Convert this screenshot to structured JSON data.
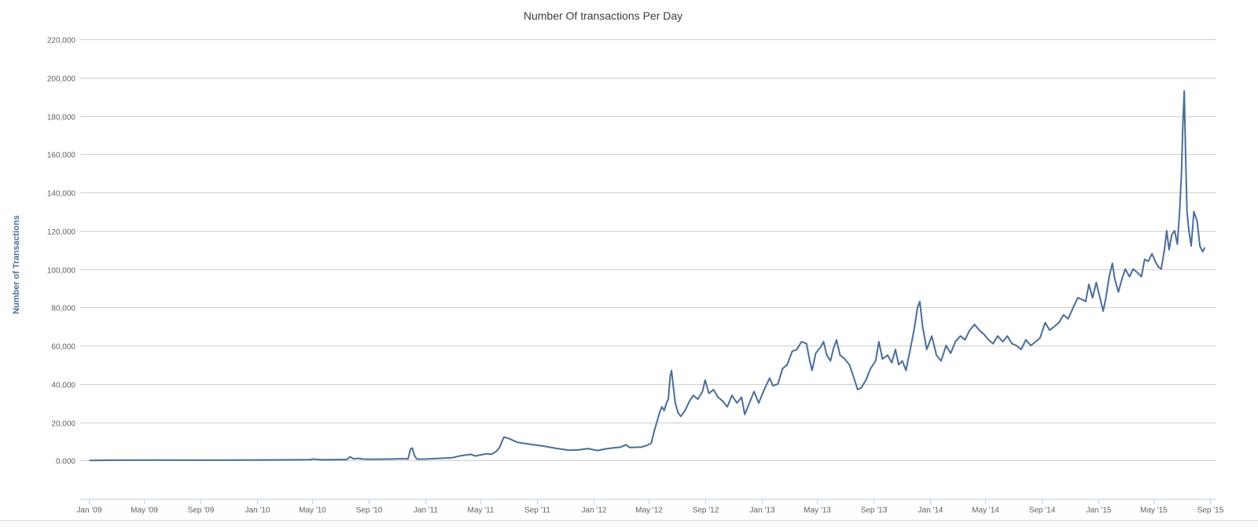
{
  "chart_data": {
    "type": "line",
    "title": "Number Of transactions Per Day",
    "xlabel": "",
    "ylabel": "Number of Transactions",
    "x_tick_labels": [
      "Jan '09",
      "May '09",
      "Sep '09",
      "Jan '10",
      "May '10",
      "Sep '10",
      "Jan '11",
      "May '11",
      "Sep '11",
      "Jan '12",
      "May '12",
      "Sep '12",
      "Jan '13",
      "May '13",
      "Sep '13",
      "Jan '14",
      "May '14",
      "Sep '14",
      "Jan '15",
      "May '15",
      "Sep '15"
    ],
    "x_tick_dates": [
      "2009-01-01",
      "2009-05-01",
      "2009-09-01",
      "2010-01-01",
      "2010-05-01",
      "2010-09-01",
      "2011-01-01",
      "2011-05-01",
      "2011-09-01",
      "2012-01-01",
      "2012-05-01",
      "2012-09-01",
      "2013-01-01",
      "2013-05-01",
      "2013-09-01",
      "2014-01-01",
      "2014-05-01",
      "2014-09-01",
      "2015-01-01",
      "2015-05-01",
      "2015-09-01"
    ],
    "y_tick_labels": [
      "0.000",
      "20,000",
      "40,000",
      "60,000",
      "80,000",
      "100,000",
      "120,000",
      "140,000",
      "160,000",
      "180,000",
      "200,000",
      "220,000"
    ],
    "y_tick_values": [
      0,
      20000,
      40000,
      60000,
      80000,
      100000,
      120000,
      140000,
      160000,
      180000,
      200000,
      220000
    ],
    "ylim": [
      -20000,
      220000
    ],
    "xlim": [
      "2009-01-01",
      "2015-09-01"
    ],
    "grid": true,
    "legend": "none",
    "series": [
      {
        "color": "#4a6d99",
        "points": [
          [
            "2009-01-03",
            0
          ],
          [
            "2009-03-01",
            150
          ],
          [
            "2009-06-01",
            200
          ],
          [
            "2009-09-01",
            150
          ],
          [
            "2009-12-01",
            200
          ],
          [
            "2010-03-01",
            300
          ],
          [
            "2010-04-25",
            400
          ],
          [
            "2010-05-05",
            700
          ],
          [
            "2010-05-20",
            350
          ],
          [
            "2010-06-20",
            400
          ],
          [
            "2010-07-15",
            500
          ],
          [
            "2010-07-22",
            1900
          ],
          [
            "2010-07-30",
            800
          ],
          [
            "2010-08-10",
            1100
          ],
          [
            "2010-08-20",
            700
          ],
          [
            "2010-09-15",
            600
          ],
          [
            "2010-10-15",
            700
          ],
          [
            "2010-11-10",
            900
          ],
          [
            "2010-11-25",
            800
          ],
          [
            "2010-11-30",
            5800
          ],
          [
            "2010-12-04",
            6500
          ],
          [
            "2010-12-09",
            2500
          ],
          [
            "2010-12-14",
            700
          ],
          [
            "2011-01-01",
            700
          ],
          [
            "2011-02-01",
            1100
          ],
          [
            "2011-03-01",
            1400
          ],
          [
            "2011-03-20",
            2500
          ],
          [
            "2011-04-10",
            3200
          ],
          [
            "2011-04-20",
            2300
          ],
          [
            "2011-05-15",
            3500
          ],
          [
            "2011-05-25",
            3200
          ],
          [
            "2011-06-05",
            4800
          ],
          [
            "2011-06-12",
            7000
          ],
          [
            "2011-06-17",
            10000
          ],
          [
            "2011-06-21",
            12200
          ],
          [
            "2011-07-01",
            11500
          ],
          [
            "2011-07-20",
            9500
          ],
          [
            "2011-08-15",
            8500
          ],
          [
            "2011-09-15",
            7500
          ],
          [
            "2011-10-15",
            6200
          ],
          [
            "2011-11-10",
            5300
          ],
          [
            "2011-12-01",
            5500
          ],
          [
            "2011-12-20",
            6200
          ],
          [
            "2012-01-10",
            5200
          ],
          [
            "2012-02-01",
            6200
          ],
          [
            "2012-03-01",
            7000
          ],
          [
            "2012-03-12",
            8200
          ],
          [
            "2012-03-20",
            6800
          ],
          [
            "2012-04-15",
            7000
          ],
          [
            "2012-04-28",
            8000
          ],
          [
            "2012-05-06",
            9000
          ],
          [
            "2012-05-12",
            15000
          ],
          [
            "2012-05-18",
            20000
          ],
          [
            "2012-05-24",
            25000
          ],
          [
            "2012-05-29",
            28000
          ],
          [
            "2012-06-03",
            26000
          ],
          [
            "2012-06-08",
            30000
          ],
          [
            "2012-06-12",
            32000
          ],
          [
            "2012-06-16",
            44000
          ],
          [
            "2012-06-19",
            47000
          ],
          [
            "2012-06-23",
            38000
          ],
          [
            "2012-06-27",
            30000
          ],
          [
            "2012-07-03",
            25000
          ],
          [
            "2012-07-09",
            23000
          ],
          [
            "2012-07-18",
            26000
          ],
          [
            "2012-07-28",
            31000
          ],
          [
            "2012-08-05",
            34000
          ],
          [
            "2012-08-15",
            32000
          ],
          [
            "2012-08-25",
            36000
          ],
          [
            "2012-08-31",
            42000
          ],
          [
            "2012-09-08",
            35000
          ],
          [
            "2012-09-18",
            37000
          ],
          [
            "2012-09-28",
            33000
          ],
          [
            "2012-10-08",
            31000
          ],
          [
            "2012-10-18",
            28000
          ],
          [
            "2012-10-28",
            34000
          ],
          [
            "2012-11-08",
            30000
          ],
          [
            "2012-11-18",
            33000
          ],
          [
            "2012-11-25",
            24000
          ],
          [
            "2012-12-05",
            30000
          ],
          [
            "2012-12-15",
            36000
          ],
          [
            "2012-12-25",
            30000
          ],
          [
            "2013-01-08",
            38000
          ],
          [
            "2013-01-18",
            43000
          ],
          [
            "2013-01-25",
            39000
          ],
          [
            "2013-02-05",
            40000
          ],
          [
            "2013-02-15",
            48000
          ],
          [
            "2013-02-25",
            50000
          ],
          [
            "2013-03-08",
            57000
          ],
          [
            "2013-03-18",
            58000
          ],
          [
            "2013-03-28",
            62000
          ],
          [
            "2013-04-08",
            61000
          ],
          [
            "2013-04-15",
            52000
          ],
          [
            "2013-04-20",
            47000
          ],
          [
            "2013-04-28",
            56000
          ],
          [
            "2013-05-08",
            59000
          ],
          [
            "2013-05-15",
            62000
          ],
          [
            "2013-05-22",
            55000
          ],
          [
            "2013-05-30",
            52000
          ],
          [
            "2013-06-05",
            58000
          ],
          [
            "2013-06-12",
            63000
          ],
          [
            "2013-06-20",
            55000
          ],
          [
            "2013-06-30",
            53000
          ],
          [
            "2013-07-10",
            50000
          ],
          [
            "2013-07-20",
            43000
          ],
          [
            "2013-07-28",
            37000
          ],
          [
            "2013-08-05",
            38000
          ],
          [
            "2013-08-15",
            42000
          ],
          [
            "2013-08-25",
            48000
          ],
          [
            "2013-09-05",
            52000
          ],
          [
            "2013-09-12",
            62000
          ],
          [
            "2013-09-20",
            53000
          ],
          [
            "2013-10-01",
            55000
          ],
          [
            "2013-10-10",
            51000
          ],
          [
            "2013-10-18",
            58000
          ],
          [
            "2013-10-25",
            50000
          ],
          [
            "2013-11-02",
            52000
          ],
          [
            "2013-11-10",
            47000
          ],
          [
            "2013-11-20",
            59000
          ],
          [
            "2013-11-28",
            69000
          ],
          [
            "2013-12-05",
            80000
          ],
          [
            "2013-12-10",
            83000
          ],
          [
            "2013-12-16",
            70000
          ],
          [
            "2013-12-25",
            58000
          ],
          [
            "2014-01-05",
            65000
          ],
          [
            "2014-01-15",
            55000
          ],
          [
            "2014-01-25",
            52000
          ],
          [
            "2014-02-05",
            60000
          ],
          [
            "2014-02-15",
            56000
          ],
          [
            "2014-02-25",
            62000
          ],
          [
            "2014-03-08",
            65000
          ],
          [
            "2014-03-18",
            63000
          ],
          [
            "2014-03-28",
            68000
          ],
          [
            "2014-04-08",
            71000
          ],
          [
            "2014-04-18",
            68000
          ],
          [
            "2014-04-28",
            66000
          ],
          [
            "2014-05-08",
            63000
          ],
          [
            "2014-05-18",
            61000
          ],
          [
            "2014-05-28",
            65000
          ],
          [
            "2014-06-08",
            62000
          ],
          [
            "2014-06-18",
            65000
          ],
          [
            "2014-06-28",
            61000
          ],
          [
            "2014-07-08",
            60000
          ],
          [
            "2014-07-18",
            58000
          ],
          [
            "2014-07-28",
            63000
          ],
          [
            "2014-08-08",
            60000
          ],
          [
            "2014-08-18",
            62000
          ],
          [
            "2014-08-28",
            64000
          ],
          [
            "2014-09-08",
            72000
          ],
          [
            "2014-09-18",
            68000
          ],
          [
            "2014-09-28",
            70000
          ],
          [
            "2014-10-08",
            72000
          ],
          [
            "2014-10-18",
            76000
          ],
          [
            "2014-10-28",
            74000
          ],
          [
            "2014-11-08",
            80000
          ],
          [
            "2014-11-18",
            85000
          ],
          [
            "2014-11-28",
            84000
          ],
          [
            "2014-12-05",
            83000
          ],
          [
            "2014-12-12",
            92000
          ],
          [
            "2014-12-20",
            85000
          ],
          [
            "2014-12-28",
            93000
          ],
          [
            "2015-01-05",
            85000
          ],
          [
            "2015-01-12",
            78000
          ],
          [
            "2015-01-18",
            85000
          ],
          [
            "2015-01-25",
            96000
          ],
          [
            "2015-02-01",
            103000
          ],
          [
            "2015-02-06",
            95000
          ],
          [
            "2015-02-14",
            88000
          ],
          [
            "2015-02-22",
            95000
          ],
          [
            "2015-03-01",
            100000
          ],
          [
            "2015-03-10",
            96000
          ],
          [
            "2015-03-18",
            100000
          ],
          [
            "2015-03-28",
            98000
          ],
          [
            "2015-04-05",
            96000
          ],
          [
            "2015-04-12",
            105000
          ],
          [
            "2015-04-20",
            104000
          ],
          [
            "2015-04-28",
            108000
          ],
          [
            "2015-05-05",
            104000
          ],
          [
            "2015-05-12",
            101000
          ],
          [
            "2015-05-18",
            100000
          ],
          [
            "2015-05-25",
            110000
          ],
          [
            "2015-05-30",
            120000
          ],
          [
            "2015-06-04",
            110000
          ],
          [
            "2015-06-10",
            118000
          ],
          [
            "2015-06-16",
            120000
          ],
          [
            "2015-06-22",
            113000
          ],
          [
            "2015-06-27",
            130000
          ],
          [
            "2015-07-01",
            150000
          ],
          [
            "2015-07-04",
            175000
          ],
          [
            "2015-07-07",
            193000
          ],
          [
            "2015-07-10",
            160000
          ],
          [
            "2015-07-13",
            130000
          ],
          [
            "2015-07-17",
            120000
          ],
          [
            "2015-07-22",
            112000
          ],
          [
            "2015-07-28",
            130000
          ],
          [
            "2015-08-04",
            125000
          ],
          [
            "2015-08-10",
            112000
          ],
          [
            "2015-08-16",
            109000
          ],
          [
            "2015-08-20",
            111000
          ]
        ]
      }
    ]
  }
}
